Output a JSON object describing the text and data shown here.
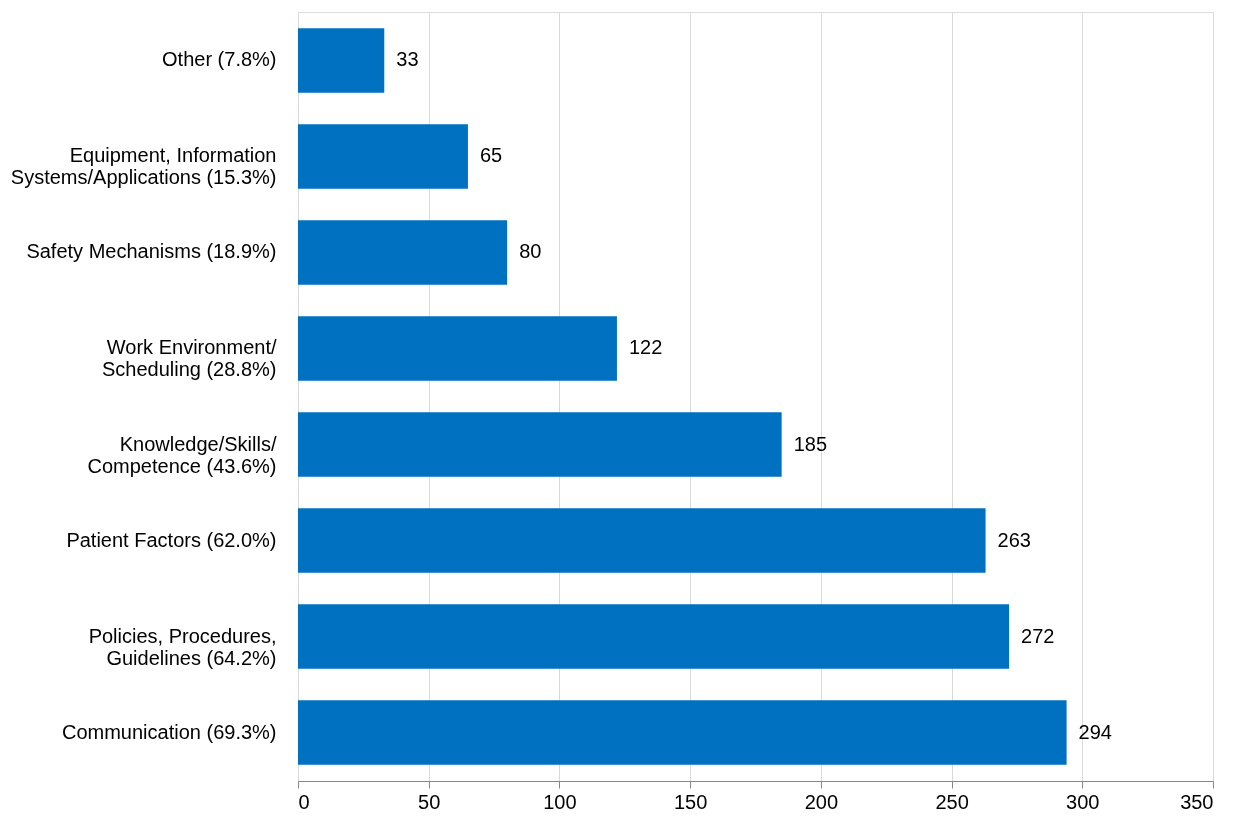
{
  "chart_data": {
    "type": "bar",
    "orientation": "horizontal",
    "categories": [
      "Other (7.8%)",
      "Equipment, Information\nSystems/Applications (15.3%)",
      "Safety Mechanisms (18.9%)",
      "Work Environment/\nScheduling (28.8%)",
      "Knowledge/Skills/\nCompetence (43.6%)",
      "Patient Factors (62.0%)",
      "Policies, Procedures,\nGuidelines (64.2%)",
      "Communication (69.3%)"
    ],
    "values": [
      33,
      65,
      80,
      122,
      185,
      263,
      272,
      294
    ],
    "color": "#0070c0",
    "xlim": [
      0,
      350
    ],
    "xticks": [
      0,
      50,
      100,
      150,
      200,
      250,
      300,
      350
    ],
    "grid": "x",
    "data_labels": true
  }
}
